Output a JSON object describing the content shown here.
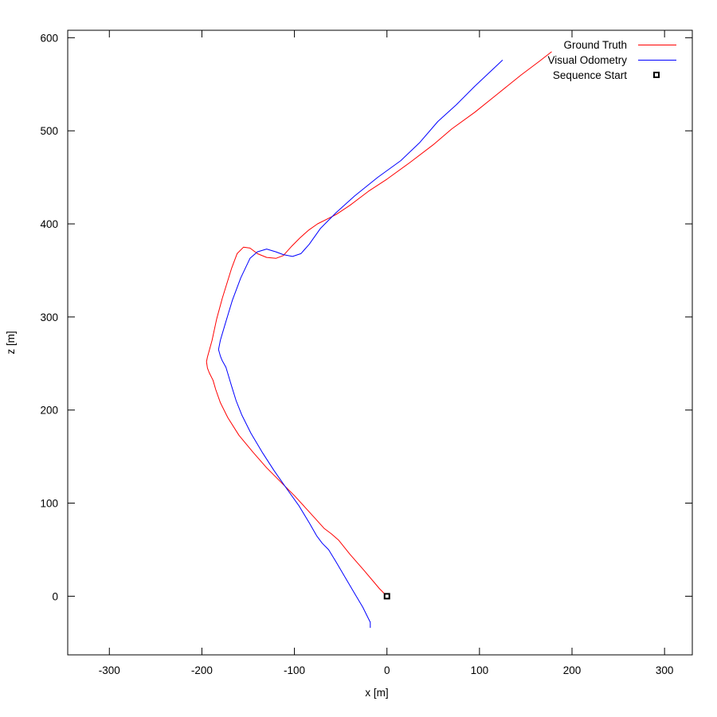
{
  "chart_data": {
    "type": "line",
    "title": "",
    "xlabel": "x [m]",
    "ylabel": "z [m]",
    "xlim": [
      -345,
      330
    ],
    "ylim": [
      -63,
      608
    ],
    "x_ticks": [
      -300,
      -200,
      -100,
      0,
      100,
      200,
      300
    ],
    "y_ticks": [
      0,
      100,
      200,
      300,
      400,
      500,
      600
    ],
    "grid": false,
    "legend_position": "top-right",
    "series": [
      {
        "name": "Ground Truth",
        "color": "#ff0000",
        "points": [
          [
            0,
            0
          ],
          [
            -8,
            8
          ],
          [
            -25,
            28
          ],
          [
            -40,
            45
          ],
          [
            -52,
            60
          ],
          [
            -60,
            67
          ],
          [
            -68,
            73
          ],
          [
            -78,
            84
          ],
          [
            -88,
            95
          ],
          [
            -100,
            108
          ],
          [
            -112,
            120
          ],
          [
            -130,
            138
          ],
          [
            -145,
            155
          ],
          [
            -160,
            173
          ],
          [
            -172,
            192
          ],
          [
            -180,
            208
          ],
          [
            -185,
            222
          ],
          [
            -188,
            232
          ],
          [
            -192,
            240
          ],
          [
            -194,
            245
          ],
          [
            -195,
            252
          ],
          [
            -194,
            257
          ],
          [
            -192,
            264
          ],
          [
            -189,
            275
          ],
          [
            -184,
            298
          ],
          [
            -178,
            320
          ],
          [
            -168,
            352
          ],
          [
            -162,
            368
          ],
          [
            -155,
            375
          ],
          [
            -148,
            374
          ],
          [
            -140,
            368
          ],
          [
            -130,
            364
          ],
          [
            -120,
            363
          ],
          [
            -112,
            366
          ],
          [
            -103,
            376
          ],
          [
            -94,
            385
          ],
          [
            -85,
            393
          ],
          [
            -75,
            400
          ],
          [
            -65,
            405
          ],
          [
            -55,
            410
          ],
          [
            -40,
            420
          ],
          [
            -20,
            435
          ],
          [
            0,
            448
          ],
          [
            25,
            466
          ],
          [
            50,
            485
          ],
          [
            70,
            502
          ],
          [
            95,
            520
          ],
          [
            120,
            540
          ],
          [
            145,
            560
          ],
          [
            165,
            575
          ],
          [
            178,
            585
          ]
        ]
      },
      {
        "name": "Visual Odometry",
        "color": "#0000ff",
        "points": [
          [
            -18,
            -34
          ],
          [
            -18,
            -28
          ],
          [
            -21,
            -22
          ],
          [
            -26,
            -12
          ],
          [
            -35,
            3
          ],
          [
            -45,
            20
          ],
          [
            -55,
            37
          ],
          [
            -63,
            50
          ],
          [
            -70,
            57
          ],
          [
            -76,
            65
          ],
          [
            -84,
            79
          ],
          [
            -95,
            97
          ],
          [
            -108,
            115
          ],
          [
            -122,
            135
          ],
          [
            -135,
            155
          ],
          [
            -147,
            175
          ],
          [
            -157,
            195
          ],
          [
            -163,
            210
          ],
          [
            -168,
            226
          ],
          [
            -171,
            236
          ],
          [
            -174,
            246
          ],
          [
            -178,
            253
          ],
          [
            -180,
            258
          ],
          [
            -182,
            265
          ],
          [
            -180,
            275
          ],
          [
            -175,
            292
          ],
          [
            -167,
            318
          ],
          [
            -158,
            342
          ],
          [
            -148,
            363
          ],
          [
            -140,
            370
          ],
          [
            -130,
            373
          ],
          [
            -120,
            370
          ],
          [
            -112,
            367
          ],
          [
            -102,
            365
          ],
          [
            -93,
            368
          ],
          [
            -84,
            378
          ],
          [
            -72,
            395
          ],
          [
            -55,
            412
          ],
          [
            -35,
            430
          ],
          [
            -10,
            450
          ],
          [
            15,
            468
          ],
          [
            35,
            487
          ],
          [
            55,
            510
          ],
          [
            75,
            528
          ],
          [
            95,
            548
          ],
          [
            110,
            562
          ],
          [
            125,
            576
          ]
        ]
      }
    ],
    "markers": [
      {
        "name": "Sequence Start",
        "x": 0,
        "y": 0,
        "color": "#000000",
        "shape": "open-square"
      }
    ]
  }
}
